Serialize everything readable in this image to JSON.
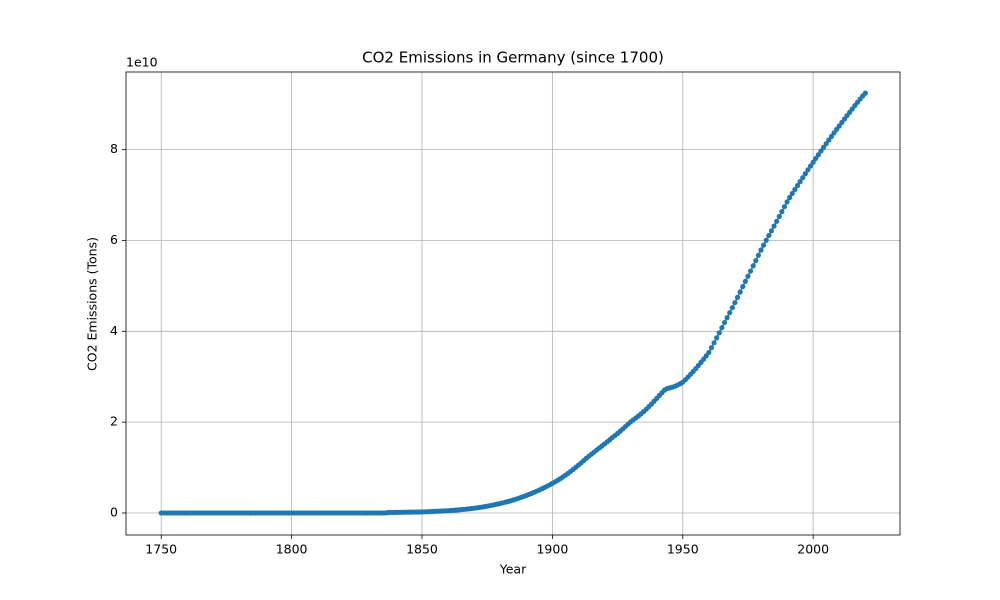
{
  "chart_data": {
    "type": "line",
    "title": "CO2 Emissions in Germany (since 1700)",
    "x_label": "Year",
    "y_label": "CO2 Emissions (Tons)",
    "y_offset_label": "1e10",
    "color": "#1f77b4",
    "grid": true,
    "xlim": [
      1736.5,
      2033.3
    ],
    "xticks": [
      1750,
      1800,
      1850,
      1900,
      1950,
      2000
    ],
    "ylim": [
      -0.485,
      9.71
    ],
    "yticks": [
      0,
      2,
      4,
      6,
      8
    ],
    "x": [
      1750,
      1751,
      1752,
      1753,
      1754,
      1755,
      1756,
      1757,
      1758,
      1759,
      1760,
      1761,
      1762,
      1763,
      1764,
      1765,
      1766,
      1767,
      1768,
      1769,
      1770,
      1771,
      1772,
      1773,
      1774,
      1775,
      1776,
      1777,
      1778,
      1779,
      1780,
      1781,
      1782,
      1783,
      1784,
      1785,
      1786,
      1787,
      1788,
      1789,
      1790,
      1791,
      1792,
      1793,
      1794,
      1795,
      1796,
      1797,
      1798,
      1799,
      1800,
      1801,
      1802,
      1803,
      1804,
      1805,
      1806,
      1807,
      1808,
      1809,
      1810,
      1811,
      1812,
      1813,
      1814,
      1815,
      1816,
      1817,
      1818,
      1819,
      1820,
      1821,
      1822,
      1823,
      1824,
      1825,
      1826,
      1827,
      1828,
      1829,
      1830,
      1831,
      1832,
      1833,
      1834,
      1835,
      1836,
      1837,
      1838,
      1839,
      1840,
      1841,
      1842,
      1843,
      1844,
      1845,
      1846,
      1847,
      1848,
      1849,
      1850,
      1851,
      1852,
      1853,
      1854,
      1855,
      1856,
      1857,
      1858,
      1859,
      1860,
      1861,
      1862,
      1863,
      1864,
      1865,
      1866,
      1867,
      1868,
      1869,
      1870,
      1871,
      1872,
      1873,
      1874,
      1875,
      1876,
      1877,
      1878,
      1879,
      1880,
      1881,
      1882,
      1883,
      1884,
      1885,
      1886,
      1887,
      1888,
      1889,
      1890,
      1891,
      1892,
      1893,
      1894,
      1895,
      1896,
      1897,
      1898,
      1899,
      1900,
      1901,
      1902,
      1903,
      1904,
      1905,
      1906,
      1907,
      1908,
      1909,
      1910,
      1911,
      1912,
      1913,
      1914,
      1915,
      1916,
      1917,
      1918,
      1919,
      1920,
      1921,
      1922,
      1923,
      1924,
      1925,
      1926,
      1927,
      1928,
      1929,
      1930,
      1931,
      1932,
      1933,
      1934,
      1935,
      1936,
      1937,
      1938,
      1939,
      1940,
      1941,
      1942,
      1943,
      1944,
      1945,
      1946,
      1947,
      1948,
      1949,
      1950,
      1951,
      1952,
      1953,
      1954,
      1955,
      1956,
      1957,
      1958,
      1959,
      1960,
      1961,
      1962,
      1963,
      1964,
      1965,
      1966,
      1967,
      1968,
      1969,
      1970,
      1971,
      1972,
      1973,
      1974,
      1975,
      1976,
      1977,
      1978,
      1979,
      1980,
      1981,
      1982,
      1983,
      1984,
      1985,
      1986,
      1987,
      1988,
      1989,
      1990,
      1991,
      1992,
      1993,
      1994,
      1995,
      1996,
      1997,
      1998,
      1999,
      2000,
      2001,
      2002,
      2003,
      2004,
      2005,
      2006,
      2007,
      2008,
      2009,
      2010,
      2011,
      2012,
      2013,
      2014,
      2015,
      2016,
      2017,
      2018,
      2019,
      2020
    ],
    "values": [
      0,
      0,
      0,
      0,
      0,
      0,
      0,
      0,
      0,
      0,
      0,
      0,
      0,
      0,
      0,
      0,
      0,
      0,
      0,
      0,
      0,
      0,
      0,
      0,
      0,
      0,
      0,
      0,
      0,
      0,
      0,
      0,
      0,
      0,
      0,
      0,
      0,
      0,
      0,
      0,
      0,
      0,
      0,
      0,
      0,
      0,
      0,
      0,
      0,
      0,
      0,
      0,
      0,
      0,
      0,
      0,
      0,
      0,
      0,
      0,
      0,
      0,
      0,
      0,
      0,
      0,
      0,
      0,
      0,
      0,
      0,
      0,
      0,
      0,
      0,
      0,
      0,
      0,
      0,
      0,
      0,
      0,
      0,
      0,
      0,
      0,
      0,
      0.01,
      0.011,
      0.012,
      0.013,
      0.014,
      0.015,
      0.016,
      0.017,
      0.018,
      0.019,
      0.02,
      0.021,
      0.022,
      0.024,
      0.026,
      0.028,
      0.03,
      0.032,
      0.035,
      0.038,
      0.041,
      0.044,
      0.047,
      0.05,
      0.054,
      0.058,
      0.063,
      0.068,
      0.073,
      0.079,
      0.085,
      0.091,
      0.098,
      0.105,
      0.113,
      0.121,
      0.13,
      0.139,
      0.149,
      0.16,
      0.172,
      0.185,
      0.197,
      0.21,
      0.224,
      0.238,
      0.253,
      0.269,
      0.286,
      0.304,
      0.323,
      0.343,
      0.364,
      0.386,
      0.408,
      0.431,
      0.455,
      0.48,
      0.506,
      0.533,
      0.561,
      0.59,
      0.62,
      0.651,
      0.684,
      0.718,
      0.754,
      0.792,
      0.831,
      0.872,
      0.915,
      0.96,
      1.006,
      1.053,
      1.102,
      1.152,
      1.203,
      1.25,
      1.295,
      1.34,
      1.386,
      1.432,
      1.475,
      1.52,
      1.565,
      1.612,
      1.66,
      1.705,
      1.752,
      1.8,
      1.85,
      1.902,
      1.955,
      2.005,
      2.05,
      2.092,
      2.135,
      2.182,
      2.232,
      2.285,
      2.34,
      2.398,
      2.46,
      2.522,
      2.585,
      2.648,
      2.705,
      2.74,
      2.755,
      2.77,
      2.79,
      2.815,
      2.845,
      2.88,
      2.935,
      2.993,
      3.053,
      3.115,
      3.18,
      3.247,
      3.316,
      3.387,
      3.46,
      3.535,
      3.64,
      3.747,
      3.856,
      3.967,
      4.08,
      4.192,
      4.3,
      4.41,
      4.52,
      4.63,
      4.748,
      4.866,
      4.984,
      5.1,
      5.212,
      5.327,
      5.443,
      5.557,
      5.674,
      5.79,
      5.898,
      6.004,
      6.108,
      6.212,
      6.316,
      6.422,
      6.528,
      6.636,
      6.744,
      6.85,
      6.946,
      7.036,
      7.124,
      7.21,
      7.296,
      7.383,
      7.47,
      7.556,
      7.64,
      7.723,
      7.806,
      7.888,
      7.97,
      8.05,
      8.131,
      8.211,
      8.29,
      8.37,
      8.446,
      8.521,
      8.598,
      8.674,
      8.75,
      8.823,
      8.897,
      8.97,
      9.043,
      9.114,
      9.181,
      9.245
    ]
  }
}
